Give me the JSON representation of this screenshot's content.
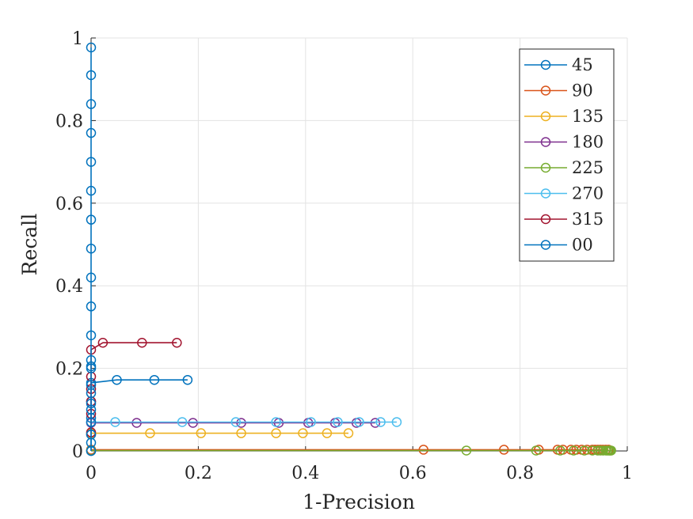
{
  "chart_data": {
    "type": "line",
    "title": "",
    "xlabel": "1-Precision",
    "ylabel": "Recall",
    "xlim": [
      0,
      1
    ],
    "ylim": [
      0,
      1
    ],
    "xticks": [
      0,
      0.2,
      0.4,
      0.6,
      0.8,
      1
    ],
    "yticks": [
      0,
      0.2,
      0.4,
      0.6,
      0.8,
      1
    ],
    "xtick_labels": [
      "0",
      "0.2",
      "0.4",
      "0.6",
      "0.8",
      "1"
    ],
    "ytick_labels": [
      "0",
      "0.2",
      "0.4",
      "0.6",
      "0.8",
      "1"
    ],
    "grid": true,
    "legend_position": "top-right",
    "marker": "circle",
    "series": [
      {
        "name": "45",
        "color": "#0072BD",
        "x": [
          0,
          0,
          0,
          0,
          0,
          0.048,
          0.118,
          0.18
        ],
        "y": [
          0,
          0.04,
          0.08,
          0.12,
          0.165,
          0.172,
          0.172,
          0.172
        ]
      },
      {
        "name": "90",
        "color": "#D95319",
        "x": [
          0,
          0.62,
          0.77,
          0.835,
          0.87,
          0.88,
          0.895,
          0.905,
          0.915,
          0.925,
          0.935,
          0.94,
          0.945,
          0.95,
          0.955,
          0.96,
          0.965
        ],
        "y": [
          0.003,
          0.003,
          0.003,
          0.003,
          0.003,
          0.003,
          0.003,
          0.003,
          0.003,
          0.003,
          0.003,
          0.003,
          0.003,
          0.003,
          0.003,
          0.003,
          0.003
        ]
      },
      {
        "name": "135",
        "color": "#EDB120",
        "x": [
          0,
          0.11,
          0.205,
          0.28,
          0.345,
          0.395,
          0.44,
          0.48
        ],
        "y": [
          0.043,
          0.043,
          0.043,
          0.043,
          0.043,
          0.043,
          0.043,
          0.043
        ]
      },
      {
        "name": "180",
        "color": "#7E2F8E",
        "x": [
          0,
          0.085,
          0.19,
          0.28,
          0.35,
          0.405,
          0.455,
          0.495,
          0.53
        ],
        "y": [
          0.068,
          0.068,
          0.068,
          0.068,
          0.068,
          0.068,
          0.068,
          0.068,
          0.068
        ]
      },
      {
        "name": "225",
        "color": "#77AC30",
        "x": [
          0,
          0.7,
          0.83,
          0.875,
          0.9,
          0.92,
          0.935,
          0.945,
          0.95,
          0.955,
          0.96,
          0.963,
          0.966,
          0.968,
          0.97
        ],
        "y": [
          0.001,
          0.001,
          0.001,
          0.001,
          0.001,
          0.001,
          0.001,
          0.001,
          0.001,
          0.001,
          0.001,
          0.001,
          0.001,
          0.001,
          0.001
        ]
      },
      {
        "name": "270",
        "color": "#4DBEEE",
        "x": [
          0,
          0.045,
          0.17,
          0.27,
          0.345,
          0.41,
          0.46,
          0.5,
          0.54,
          0.57
        ],
        "y": [
          0.07,
          0.07,
          0.07,
          0.07,
          0.07,
          0.07,
          0.07,
          0.07,
          0.07,
          0.07
        ]
      },
      {
        "name": "315",
        "color": "#A2142F",
        "x": [
          0,
          0,
          0,
          0,
          0,
          0,
          0.022,
          0.095,
          0.16
        ],
        "y": [
          0.045,
          0.09,
          0.12,
          0.15,
          0.18,
          0.245,
          0.262,
          0.262,
          0.262
        ]
      },
      {
        "name": "00",
        "color": "#0072BD",
        "x": [
          0,
          0,
          0,
          0,
          0,
          0,
          0,
          0,
          0,
          0,
          0,
          0,
          0,
          0,
          0,
          0,
          0,
          0,
          0,
          0,
          0,
          0
        ],
        "y": [
          0,
          0.02,
          0.04,
          0.07,
          0.1,
          0.115,
          0.14,
          0.16,
          0.2,
          0.205,
          0.22,
          0.28,
          0.35,
          0.42,
          0.49,
          0.56,
          0.63,
          0.7,
          0.77,
          0.84,
          0.91,
          0.977
        ]
      }
    ]
  }
}
